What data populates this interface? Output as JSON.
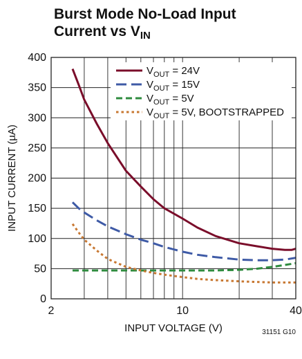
{
  "chart_data": {
    "type": "line",
    "title_line1": "Burst Mode No-Load Input",
    "title_line2_main": "Current vs V",
    "title_line2_sub": "IN",
    "xlabel": "INPUT VOLTAGE (V)",
    "ylabel": "INPUT CURRENT (µA)",
    "x_scale": "log",
    "xlim": [
      2,
      40
    ],
    "ylim": [
      0,
      400
    ],
    "y_ticks": [
      0,
      50,
      100,
      150,
      200,
      250,
      300,
      350,
      400
    ],
    "x_tick_labels": [
      {
        "value": 2,
        "label": "2"
      },
      {
        "value": 10,
        "label": "10"
      },
      {
        "value": 40,
        "label": "40"
      }
    ],
    "x_gridlines": [
      2,
      3,
      4,
      5,
      6,
      7,
      8,
      9,
      10,
      20,
      30,
      40
    ],
    "grid": true,
    "legend_position": "top-right",
    "figure_code": "31151 G10",
    "series": [
      {
        "name_prefix": "V",
        "name_sub": "OUT",
        "name_suffix": " = 24V",
        "color": "#7a0d2a",
        "dash": "solid",
        "x": [
          2.6,
          2.8,
          3.0,
          3.5,
          4.0,
          5.0,
          6.0,
          7.0,
          8.0,
          10.0,
          12.0,
          15.0,
          20.0,
          25.0,
          30.0,
          35.0,
          38.0,
          40.0
        ],
        "y": [
          381,
          355,
          330,
          290,
          258,
          212,
          186,
          165,
          150,
          133,
          118,
          104,
          92,
          87,
          83,
          81,
          81,
          83
        ]
      },
      {
        "name_prefix": "V",
        "name_sub": "OUT",
        "name_suffix": " = 15V",
        "color": "#3e5aa6",
        "dash": "long",
        "x": [
          2.6,
          2.8,
          3.0,
          3.5,
          4.0,
          5.0,
          6.0,
          7.0,
          8.0,
          10.0,
          12.0,
          15.0,
          20.0,
          25.0,
          30.0,
          35.0,
          40.0
        ],
        "y": [
          160,
          150,
          143,
          130,
          120,
          107,
          98,
          92,
          86,
          78,
          73,
          69,
          65,
          64,
          64,
          65,
          68
        ]
      },
      {
        "name_prefix": "V",
        "name_sub": "OUT",
        "name_suffix": " = 5V",
        "color": "#2e8b3e",
        "dash": "medium",
        "x": [
          2.6,
          3.0,
          5.0,
          10.0,
          15.0,
          20.0,
          25.0,
          30.0,
          35.0,
          40.0
        ],
        "y": [
          47,
          47,
          47,
          47,
          47,
          48,
          50,
          53,
          56,
          59
        ]
      },
      {
        "name_prefix": "V",
        "name_sub": "OUT",
        "name_suffix": " = 5V, BOOTSTRAPPED",
        "color": "#c87832",
        "dash": "dotted",
        "x": [
          2.6,
          2.8,
          3.0,
          3.5,
          4.0,
          5.0,
          6.0,
          7.0,
          8.0,
          10.0,
          12.0,
          15.0,
          20.0,
          25.0,
          30.0,
          35.0,
          40.0
        ],
        "y": [
          124,
          110,
          98,
          80,
          66,
          53,
          47,
          43,
          40,
          36,
          33,
          31,
          29,
          28,
          27,
          27,
          27
        ]
      }
    ]
  }
}
